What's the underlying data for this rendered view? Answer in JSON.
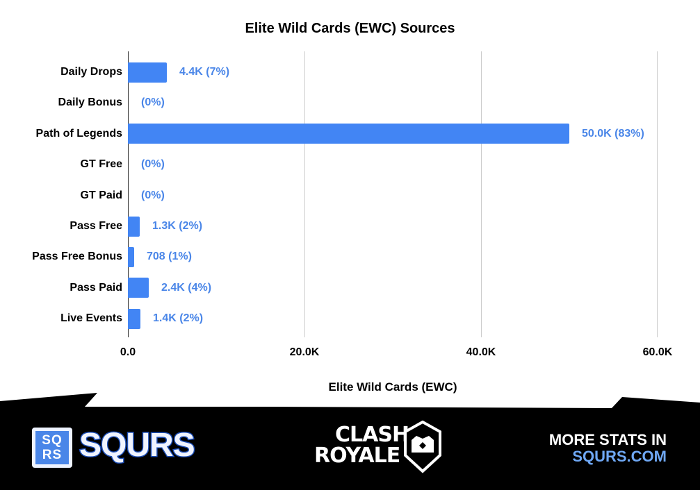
{
  "chart_data": {
    "type": "bar",
    "orientation": "horizontal",
    "title": "Elite Wild Cards (EWC) Sources",
    "xlabel": "Elite Wild Cards (EWC)",
    "ylabel": "",
    "xlim": [
      0,
      60000
    ],
    "x_ticks": [
      "0.0",
      "20.0K",
      "40.0K",
      "60.0K"
    ],
    "grid": true,
    "legend": "none",
    "bar_color": "#4285f4",
    "label_color": "#4a86e8",
    "categories": [
      "Daily Drops",
      "Daily Bonus",
      "Path of Legends",
      "GT Free",
      "GT Paid",
      "Pass Free",
      "Pass Free Bonus",
      "Pass Paid",
      "Live Events"
    ],
    "values": [
      4400,
      0,
      50000,
      0,
      0,
      1300,
      708,
      2400,
      1400
    ],
    "data_labels": [
      "4.4K (7%)",
      "(0%)",
      "50.0K (83%)",
      "(0%)",
      "(0%)",
      "1.3K (2%)",
      "708 (1%)",
      "2.4K (4%)",
      "1.4K (2%)"
    ]
  },
  "footer": {
    "brand_box": "SQ RS",
    "brand_box_l1": "SQ",
    "brand_box_l2": "RS",
    "brand_name": "SQURS",
    "game_logo_l1": "CLASH",
    "game_logo_l2": "ROYALE",
    "cta_line1": "MORE STATS IN",
    "cta_line2": "SQURS.COM"
  }
}
